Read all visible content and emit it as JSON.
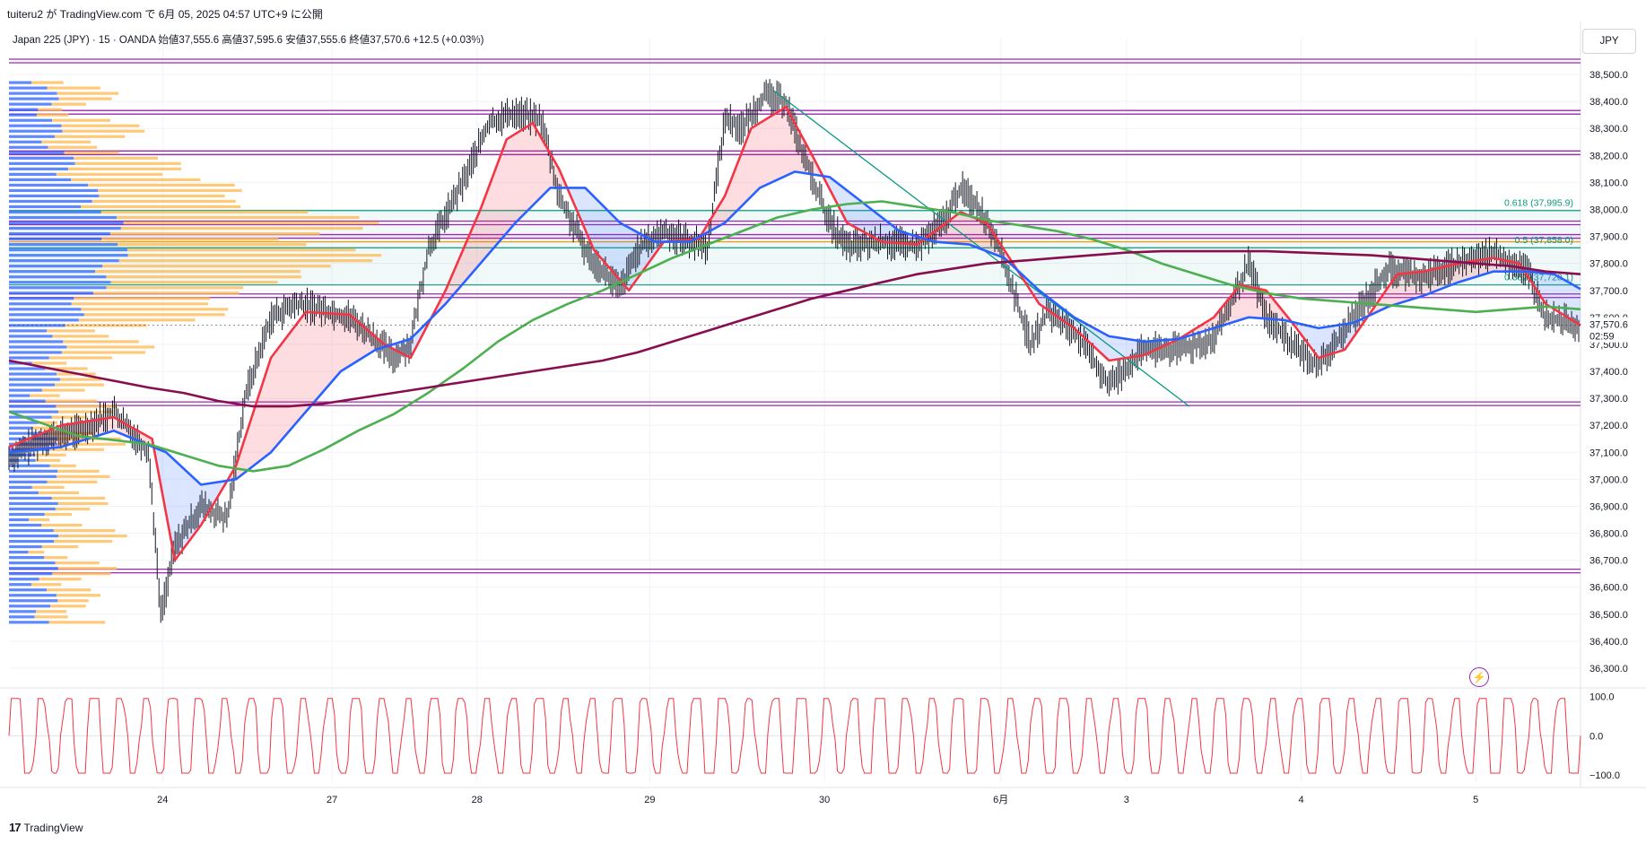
{
  "header": {
    "publish_line": "tuiteru2 が TradingView.com で 6月 05, 2025 04:57 UTC+9 に公開",
    "legend": "Japan 225 (JPY) · 15 · OANDA  始値37,555.6  高値37,595.6  安値37,555.6  終値37,570.6  +12.5 (+0.03%)",
    "currency_button": "JPY"
  },
  "footer": {
    "brand": "TradingView",
    "logo_glyph": "17"
  },
  "colors": {
    "candles": "#131722",
    "ema_fast": "#f23645",
    "ema_mid": "#2962ff",
    "ema_slow": "#4caf50",
    "ema_long": "#880e4f",
    "level_lines": "#9c27b0",
    "fib_line": "#089981",
    "orange_line": "#ff9800",
    "volume_up": "#2962ff",
    "volume_down": "#ffb74d",
    "oscillator": "#f23645"
  },
  "chart_data": [
    {
      "type": "line",
      "title": "",
      "symbol": "Japan 225 (JPY)",
      "timeframe": "15",
      "source": "OANDA",
      "ohlc": {
        "open": 37555.6,
        "high": 37595.6,
        "low": 37555.6,
        "close": 37570.6,
        "change": "+12.5 (+0.03%)"
      },
      "ylim": [
        36250,
        38570
      ],
      "y_ticks": [
        38500,
        38400,
        38300,
        38200,
        38100,
        38000,
        37900,
        37800,
        37700,
        37600,
        37500,
        37400,
        37300,
        37200,
        37100,
        37000,
        36900,
        36800,
        36700,
        36600,
        36500,
        36400,
        36300
      ],
      "x_ticks": [
        "24",
        "27",
        "28",
        "29",
        "30",
        "6月",
        "3",
        "4",
        "5"
      ],
      "x_tick_index": [
        8.8,
        18.5,
        26.8,
        36.7,
        46.7,
        56.8,
        64.0,
        74.0,
        84.0
      ],
      "xlim": [
        0,
        90
      ],
      "current_price_label": "37,570.6",
      "countdown_label": "02:59",
      "horizontal_levels": [
        38550,
        38360,
        38210,
        37950,
        37900,
        37680,
        37280,
        36660
      ],
      "fib_levels": [
        {
          "label": "0.618 (37,995.9)",
          "value": 37995.9
        },
        {
          "label": "0.5 (37,858.0)",
          "value": 37858.0
        },
        {
          "label": "0.382 (37,720.1)",
          "value": 37720.1
        }
      ],
      "orange_level": 37880,
      "trendline": {
        "from": [
          43.8,
          38440
        ],
        "to": [
          67.6,
          37270
        ]
      },
      "price": [
        [
          0,
          37080
        ],
        [
          2,
          37150
        ],
        [
          4,
          37180
        ],
        [
          6,
          37250
        ],
        [
          8,
          37100
        ],
        [
          8.7,
          36500
        ],
        [
          9.5,
          36750
        ],
        [
          11,
          36900
        ],
        [
          12.5,
          36850
        ],
        [
          13.5,
          37300
        ],
        [
          15,
          37600
        ],
        [
          16.5,
          37650
        ],
        [
          18,
          37630
        ],
        [
          19.5,
          37600
        ],
        [
          21,
          37520
        ],
        [
          22,
          37450
        ],
        [
          23,
          37500
        ],
        [
          24,
          37850
        ],
        [
          26,
          38100
        ],
        [
          27.5,
          38320
        ],
        [
          29,
          38360
        ],
        [
          30.5,
          38330
        ],
        [
          31.5,
          38050
        ],
        [
          33,
          37850
        ],
        [
          35,
          37700
        ],
        [
          36,
          37850
        ],
        [
          37.5,
          37920
        ],
        [
          39,
          37880
        ],
        [
          40,
          37860
        ],
        [
          41,
          38340
        ],
        [
          42,
          38300
        ],
        [
          43.2,
          38420
        ],
        [
          44.5,
          38400
        ],
        [
          45.5,
          38200
        ],
        [
          47,
          37950
        ],
        [
          48,
          37860
        ],
        [
          50,
          37880
        ],
        [
          52,
          37860
        ],
        [
          53.5,
          37950
        ],
        [
          54.5,
          38080
        ],
        [
          55.5,
          38010
        ],
        [
          56.5,
          37900
        ],
        [
          57.5,
          37700
        ],
        [
          58.5,
          37500
        ],
        [
          59.5,
          37620
        ],
        [
          61,
          37550
        ],
        [
          63,
          37350
        ],
        [
          65,
          37480
        ],
        [
          67,
          37480
        ],
        [
          69,
          37520
        ],
        [
          70,
          37650
        ],
        [
          71,
          37800
        ],
        [
          72,
          37600
        ],
        [
          73.5,
          37500
        ],
        [
          75,
          37420
        ],
        [
          76,
          37500
        ],
        [
          77.5,
          37650
        ],
        [
          79,
          37780
        ],
        [
          81,
          37750
        ],
        [
          83,
          37800
        ],
        [
          85,
          37840
        ],
        [
          87,
          37770
        ],
        [
          88,
          37600
        ],
        [
          90,
          37571
        ]
      ],
      "series": [
        {
          "name": "",
          "values": [
            [
              0,
              37120
            ],
            [
              3,
              37200
            ],
            [
              6,
              37230
            ],
            [
              8.2,
              37150
            ],
            [
              9.5,
              36700
            ],
            [
              11,
              36830
            ],
            [
              13,
              37050
            ],
            [
              15,
              37450
            ],
            [
              17,
              37620
            ],
            [
              19.5,
              37610
            ],
            [
              21.5,
              37500
            ],
            [
              23,
              37450
            ],
            [
              25,
              37700
            ],
            [
              27,
              38000
            ],
            [
              28.5,
              38260
            ],
            [
              30,
              38320
            ],
            [
              31.5,
              38150
            ],
            [
              33.5,
              37850
            ],
            [
              35.5,
              37700
            ],
            [
              37.5,
              37880
            ],
            [
              39.5,
              37890
            ],
            [
              41,
              38050
            ],
            [
              42.5,
              38300
            ],
            [
              44.5,
              38380
            ],
            [
              46,
              38200
            ],
            [
              48,
              37950
            ],
            [
              50,
              37880
            ],
            [
              52,
              37870
            ],
            [
              54.5,
              37990
            ],
            [
              56,
              37950
            ],
            [
              57.5,
              37800
            ],
            [
              59,
              37650
            ],
            [
              61,
              37560
            ],
            [
              63,
              37440
            ],
            [
              65,
              37460
            ],
            [
              67,
              37520
            ],
            [
              69,
              37600
            ],
            [
              70.5,
              37720
            ],
            [
              72,
              37700
            ],
            [
              73.5,
              37580
            ],
            [
              75,
              37450
            ],
            [
              76.5,
              37480
            ],
            [
              78,
              37620
            ],
            [
              79.5,
              37760
            ],
            [
              81,
              37770
            ],
            [
              83,
              37800
            ],
            [
              85,
              37820
            ],
            [
              86.5,
              37800
            ],
            [
              88,
              37650
            ],
            [
              90,
              37571
            ]
          ]
        },
        {
          "name": "",
          "values": [
            [
              0,
              37100
            ],
            [
              3,
              37120
            ],
            [
              6,
              37180
            ],
            [
              9,
              37100
            ],
            [
              11,
              36980
            ],
            [
              13,
              37000
            ],
            [
              15,
              37100
            ],
            [
              17,
              37250
            ],
            [
              19,
              37400
            ],
            [
              21,
              37480
            ],
            [
              23,
              37520
            ],
            [
              25,
              37650
            ],
            [
              27,
              37800
            ],
            [
              29,
              37950
            ],
            [
              31,
              38080
            ],
            [
              33,
              38080
            ],
            [
              35,
              37950
            ],
            [
              37,
              37880
            ],
            [
              39,
              37880
            ],
            [
              41,
              37950
            ],
            [
              43,
              38080
            ],
            [
              45,
              38140
            ],
            [
              47,
              38120
            ],
            [
              49,
              38020
            ],
            [
              51,
              37920
            ],
            [
              53,
              37880
            ],
            [
              55,
              37870
            ],
            [
              57,
              37820
            ],
            [
              59,
              37700
            ],
            [
              61,
              37600
            ],
            [
              63,
              37530
            ],
            [
              65,
              37510
            ],
            [
              67,
              37520
            ],
            [
              69,
              37560
            ],
            [
              71,
              37600
            ],
            [
              73,
              37590
            ],
            [
              75,
              37560
            ],
            [
              77,
              37580
            ],
            [
              79,
              37640
            ],
            [
              81,
              37680
            ],
            [
              83,
              37730
            ],
            [
              85,
              37770
            ],
            [
              87,
              37770
            ],
            [
              88.5,
              37760
            ],
            [
              90,
              37705
            ]
          ]
        },
        {
          "name": "",
          "values": [
            [
              0,
              37250
            ],
            [
              4,
              37160
            ],
            [
              8,
              37130
            ],
            [
              10,
              37090
            ],
            [
              12,
              37050
            ],
            [
              14,
              37030
            ],
            [
              16,
              37050
            ],
            [
              18,
              37110
            ],
            [
              20,
              37180
            ],
            [
              22,
              37240
            ],
            [
              24,
              37320
            ],
            [
              26,
              37410
            ],
            [
              28,
              37510
            ],
            [
              30,
              37590
            ],
            [
              32,
              37650
            ],
            [
              34,
              37700
            ],
            [
              36,
              37760
            ],
            [
              38,
              37820
            ],
            [
              40,
              37870
            ],
            [
              42,
              37920
            ],
            [
              44,
              37970
            ],
            [
              46,
              38000
            ],
            [
              48,
              38020
            ],
            [
              50,
              38030
            ],
            [
              52,
              38010
            ],
            [
              54,
              37990
            ],
            [
              56,
              37960
            ],
            [
              58,
              37940
            ],
            [
              60,
              37920
            ],
            [
              62,
              37890
            ],
            [
              64,
              37850
            ],
            [
              66,
              37800
            ],
            [
              68,
              37760
            ],
            [
              70,
              37720
            ],
            [
              72,
              37690
            ],
            [
              74,
              37670
            ],
            [
              76,
              37660
            ],
            [
              78,
              37650
            ],
            [
              80,
              37640
            ],
            [
              82,
              37630
            ],
            [
              84,
              37620
            ],
            [
              86,
              37630
            ],
            [
              88,
              37640
            ],
            [
              90,
              37630
            ]
          ]
        },
        {
          "name": "",
          "values": [
            [
              0,
              37440
            ],
            [
              4,
              37390
            ],
            [
              8,
              37340
            ],
            [
              10,
              37320
            ],
            [
              12,
              37290
            ],
            [
              14,
              37270
            ],
            [
              16,
              37270
            ],
            [
              18,
              37280
            ],
            [
              20,
              37300
            ],
            [
              22,
              37320
            ],
            [
              24,
              37340
            ],
            [
              26,
              37360
            ],
            [
              28,
              37380
            ],
            [
              30,
              37400
            ],
            [
              32,
              37420
            ],
            [
              34,
              37440
            ],
            [
              36,
              37470
            ],
            [
              38,
              37510
            ],
            [
              40,
              37550
            ],
            [
              42,
              37590
            ],
            [
              44,
              37630
            ],
            [
              46,
              37670
            ],
            [
              48,
              37700
            ],
            [
              50,
              37730
            ],
            [
              52,
              37760
            ],
            [
              54,
              37780
            ],
            [
              56,
              37800
            ],
            [
              58,
              37810
            ],
            [
              60,
              37820
            ],
            [
              62,
              37830
            ],
            [
              64,
              37840
            ],
            [
              66,
              37845
            ],
            [
              68,
              37845
            ],
            [
              70,
              37845
            ],
            [
              72,
              37845
            ],
            [
              74,
              37840
            ],
            [
              76,
              37835
            ],
            [
              78,
              37830
            ],
            [
              80,
              37820
            ],
            [
              82,
              37810
            ],
            [
              84,
              37800
            ],
            [
              86,
              37790
            ],
            [
              88,
              37770
            ],
            [
              90,
              37760
            ]
          ]
        }
      ]
    },
    {
      "type": "line",
      "title": "",
      "ylim": [
        -120,
        115
      ],
      "y_ticks": [
        100.0,
        0.0,
        -100.0
      ],
      "y_tick_labels": [
        "100.0",
        "0.0",
        "−100.0"
      ],
      "cycles": 60,
      "amplitude": 95
    }
  ]
}
